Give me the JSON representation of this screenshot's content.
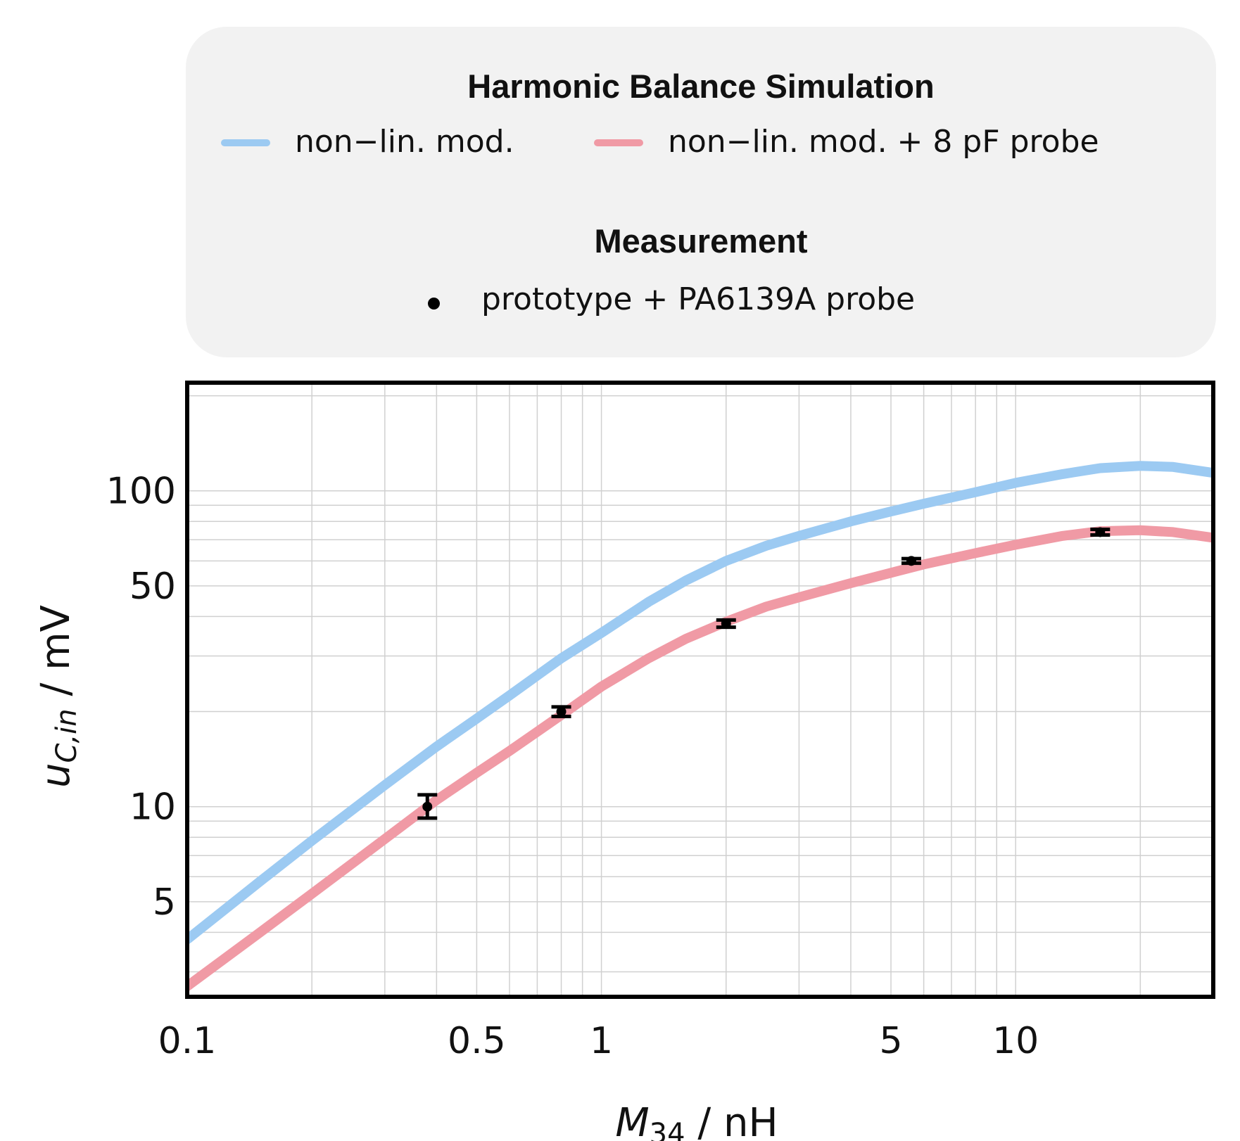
{
  "legend": {
    "simulation_heading": "Harmonic Balance Simulation",
    "series1_label": "non−lin. mod.",
    "series2_label": "non−lin. mod. + 8 pF probe",
    "measurement_heading": "Measurement",
    "measurement_label": "prototype + PA6139A probe"
  },
  "chart_data": {
    "type": "line",
    "title": "",
    "xlabel": "M34 / nH",
    "xlabel_main": "M",
    "xlabel_sub": "34",
    "xlabel_unit": " / nH",
    "ylabel": "u_C,in / mV",
    "ylabel_main": "u",
    "ylabel_sub": "C,in",
    "ylabel_unit": " / mV",
    "x_scale": "log",
    "y_scale": "log",
    "xlim": [
      0.1,
      30
    ],
    "ylim": [
      2.5,
      220
    ],
    "grid": true,
    "x_ticks": [
      0.1,
      0.5,
      1,
      5,
      10
    ],
    "x_tick_labels": [
      "0.1",
      "0.5",
      "1",
      "5",
      "10"
    ],
    "y_ticks": [
      5,
      10,
      50,
      100
    ],
    "y_tick_labels": [
      "5",
      "10",
      "50",
      "100"
    ],
    "legend_position": "top",
    "colors": {
      "series1": "#9ccaf2",
      "series2": "#f09aa5",
      "measurement": "#000000"
    },
    "series": [
      {
        "name": "non−lin. mod.",
        "x": [
          0.1,
          0.15,
          0.2,
          0.3,
          0.4,
          0.5,
          0.6,
          0.8,
          1.0,
          1.3,
          1.6,
          2.0,
          2.5,
          3.0,
          4.0,
          5.0,
          6.0,
          8.0,
          10.0,
          13.0,
          16.0,
          20.0,
          24.0,
          30.0
        ],
        "values": [
          3.8,
          5.8,
          7.8,
          11.7,
          15.5,
          19.0,
          22.5,
          29.5,
          35.5,
          44.5,
          52.0,
          60.0,
          67.0,
          72.0,
          80.0,
          86.0,
          91.0,
          99.0,
          106.0,
          113.0,
          118.0,
          120.0,
          119.0,
          114.0
        ]
      },
      {
        "name": "non−lin. mod. + 8 pF probe",
        "x": [
          0.1,
          0.15,
          0.2,
          0.3,
          0.4,
          0.5,
          0.6,
          0.8,
          1.0,
          1.3,
          1.6,
          2.0,
          2.5,
          3.0,
          4.0,
          5.0,
          6.0,
          8.0,
          10.0,
          13.0,
          16.0,
          20.0,
          24.0,
          30.0
        ],
        "values": [
          2.7,
          4.0,
          5.3,
          7.9,
          10.5,
          12.8,
          15.0,
          19.5,
          24.0,
          29.5,
          34.0,
          38.5,
          43.0,
          46.0,
          51.0,
          55.0,
          58.5,
          63.5,
          67.5,
          72.0,
          74.5,
          75.0,
          74.0,
          71.0
        ]
      }
    ],
    "measurement": {
      "name": "prototype + PA6139A probe",
      "x": [
        0.38,
        0.8,
        2.0,
        5.6,
        16.0
      ],
      "y": [
        10.0,
        20.0,
        38.0,
        60.0,
        74.0
      ],
      "y_low": [
        9.2,
        19.3,
        37.0,
        59.0,
        72.5
      ],
      "y_high": [
        10.9,
        20.7,
        39.0,
        61.0,
        75.5
      ]
    }
  }
}
